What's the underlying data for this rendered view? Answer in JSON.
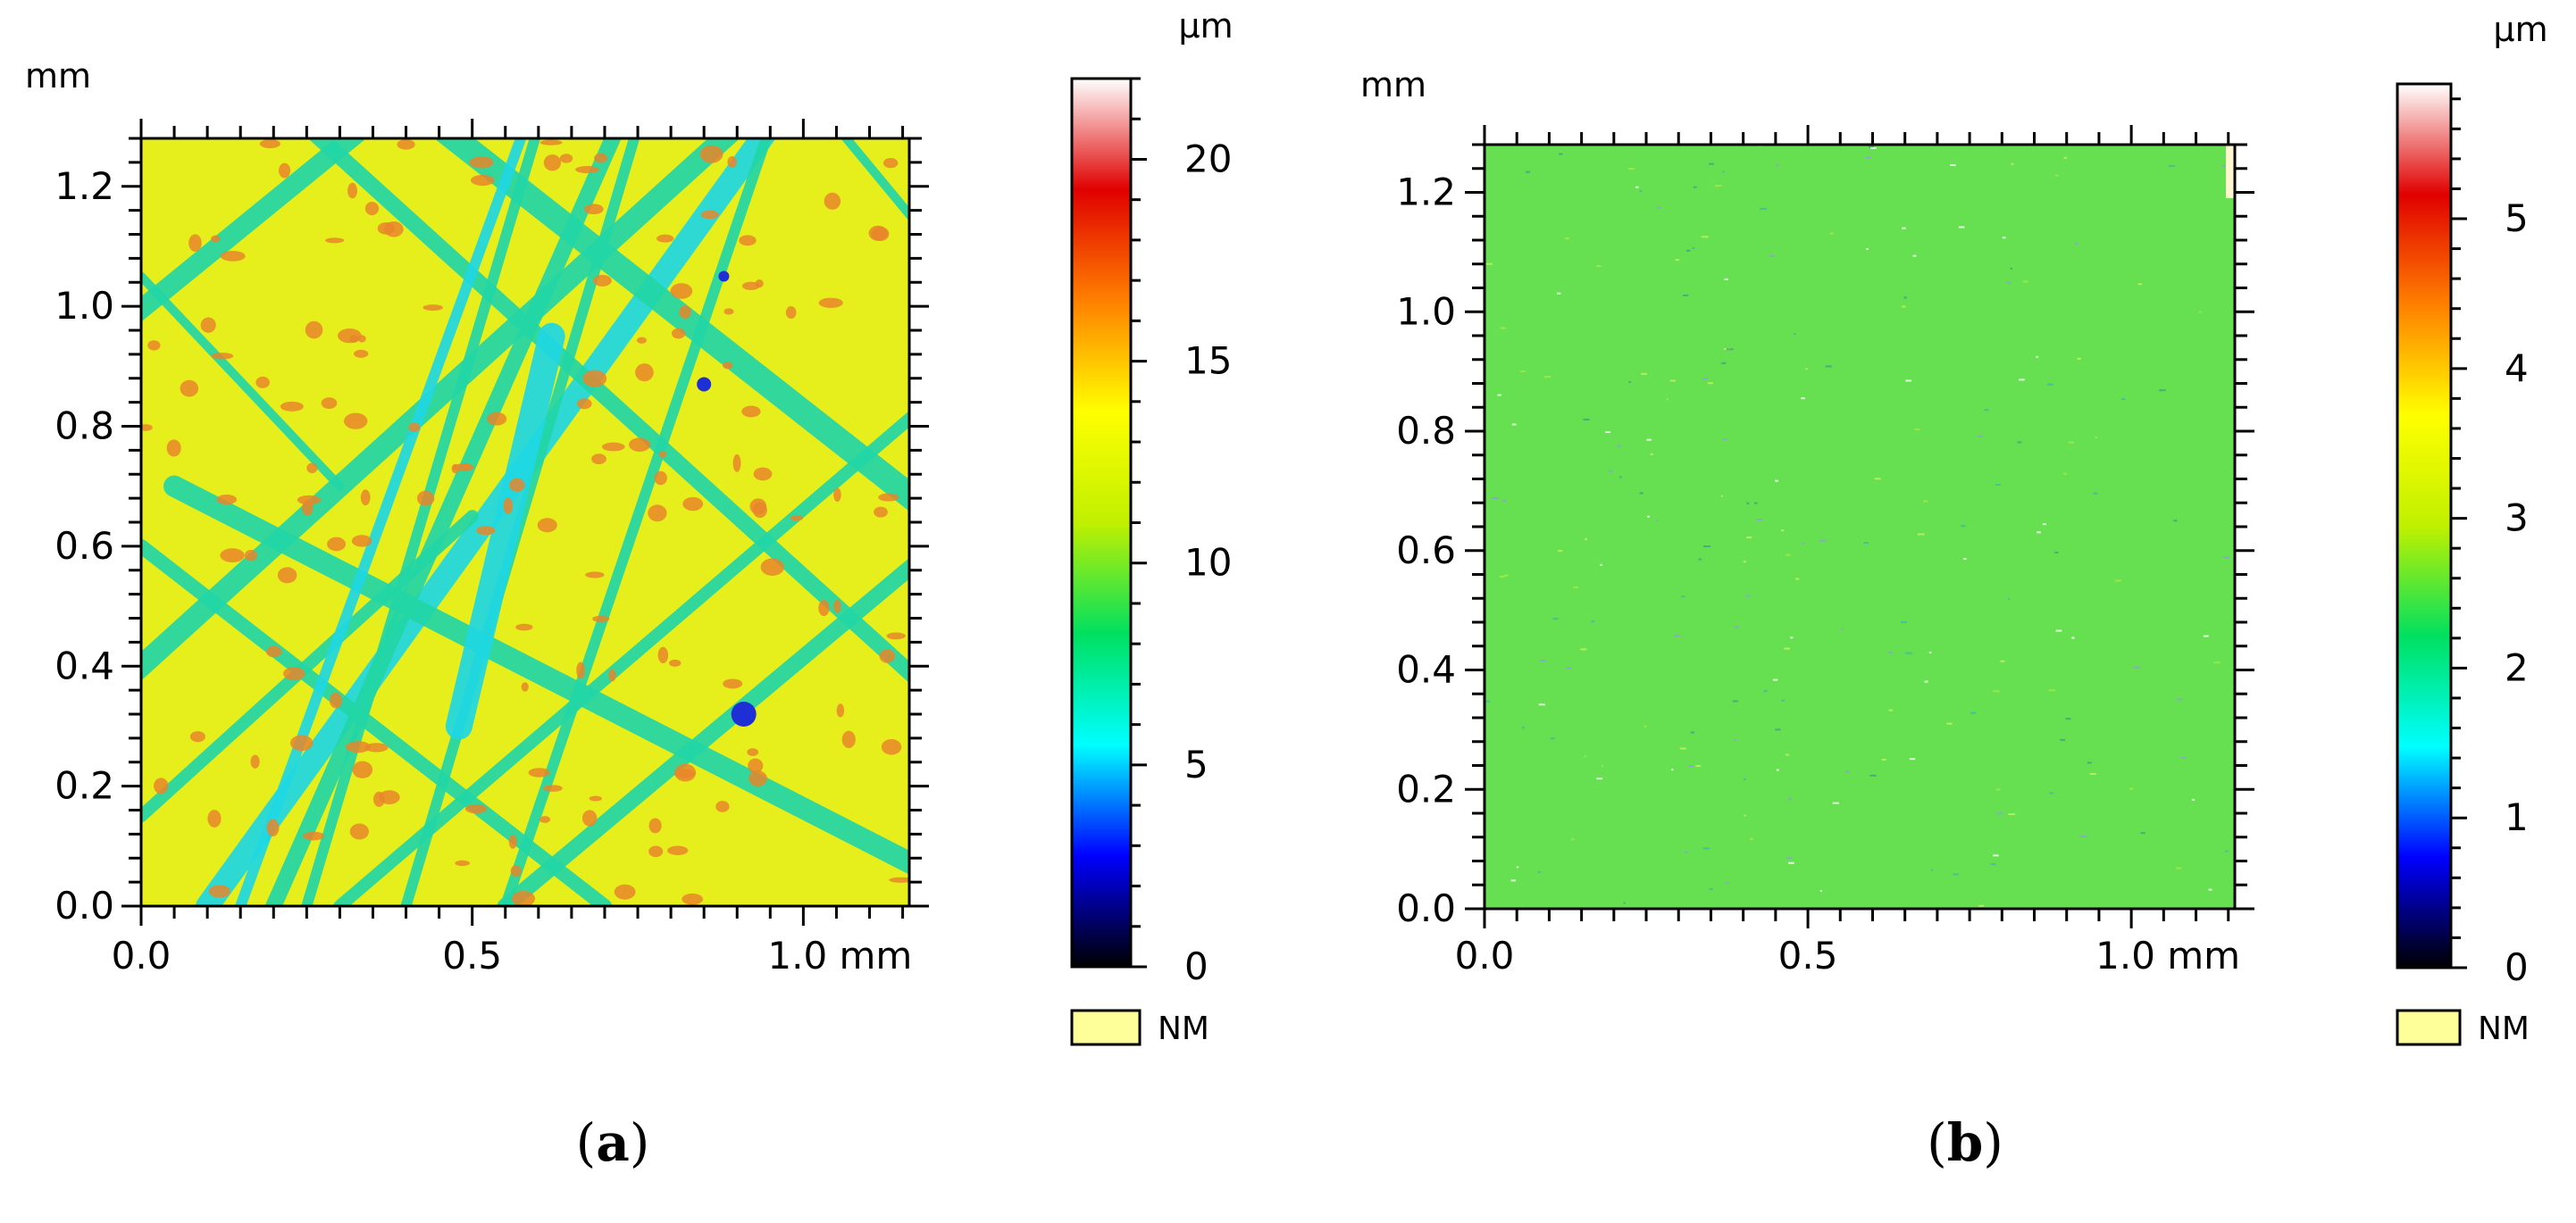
{
  "chart_data": [
    {
      "type": "heatmap",
      "id": "a",
      "caption": "a",
      "x_unit": "mm",
      "y_unit": "mm",
      "x_ticks": [
        "0.0",
        "0.5",
        "1.0 mm"
      ],
      "x_tick_values": [
        0.0,
        0.5,
        1.0
      ],
      "y_ticks": [
        "0.0",
        "0.2",
        "0.4",
        "0.6",
        "0.8",
        "1.0",
        "1.2"
      ],
      "y_tick_values": [
        0.0,
        0.2,
        0.4,
        0.6,
        0.8,
        1.0,
        1.2
      ],
      "xlim": [
        0.0,
        1.16
      ],
      "ylim": [
        0.0,
        1.28
      ],
      "colorbar": {
        "unit": "µm",
        "ticks": [
          "0",
          "5",
          "10",
          "15",
          "20"
        ],
        "tick_values": [
          0,
          5,
          10,
          15,
          20
        ],
        "range": [
          0,
          22
        ],
        "colormap": [
          "#000000",
          "#0000ff",
          "#00ffff",
          "#00e060",
          "#c0f000",
          "#ffff00",
          "#ff8000",
          "#e00000",
          "#ffffff"
        ],
        "nm_label": "NM",
        "nm_color": "#ffff99"
      },
      "surface": {
        "base_value": 13.5,
        "description_colors": {
          "base": "#e6ee1c",
          "groove": "#22d6a6",
          "deep_groove": "#1fd8e4",
          "peak": "#e8862a",
          "pit": "#1f2fd6"
        }
      }
    },
    {
      "type": "heatmap",
      "id": "b",
      "caption": "b",
      "x_unit": "mm",
      "y_unit": "mm",
      "x_ticks": [
        "0.0",
        "0.5",
        "1.0 mm"
      ],
      "x_tick_values": [
        0.0,
        0.5,
        1.0
      ],
      "y_ticks": [
        "0.0",
        "0.2",
        "0.4",
        "0.6",
        "0.8",
        "1.0",
        "1.2"
      ],
      "y_tick_values": [
        0.0,
        0.2,
        0.4,
        0.6,
        0.8,
        1.0,
        1.2
      ],
      "xlim": [
        0.0,
        1.16
      ],
      "ylim": [
        0.0,
        1.28
      ],
      "colorbar": {
        "unit": "µm",
        "ticks": [
          "0",
          "1",
          "2",
          "3",
          "4",
          "5"
        ],
        "tick_values": [
          0,
          1,
          2,
          3,
          4,
          5
        ],
        "range": [
          0,
          5.9
        ],
        "colormap": [
          "#000000",
          "#0000ff",
          "#00ffff",
          "#00e060",
          "#c0f000",
          "#ffff00",
          "#ff8000",
          "#e00000",
          "#ffffff"
        ],
        "nm_label": "NM",
        "nm_color": "#ffff99"
      },
      "surface": {
        "base_value": 2.6,
        "description_colors": {
          "base": "#66e050"
        }
      }
    }
  ]
}
